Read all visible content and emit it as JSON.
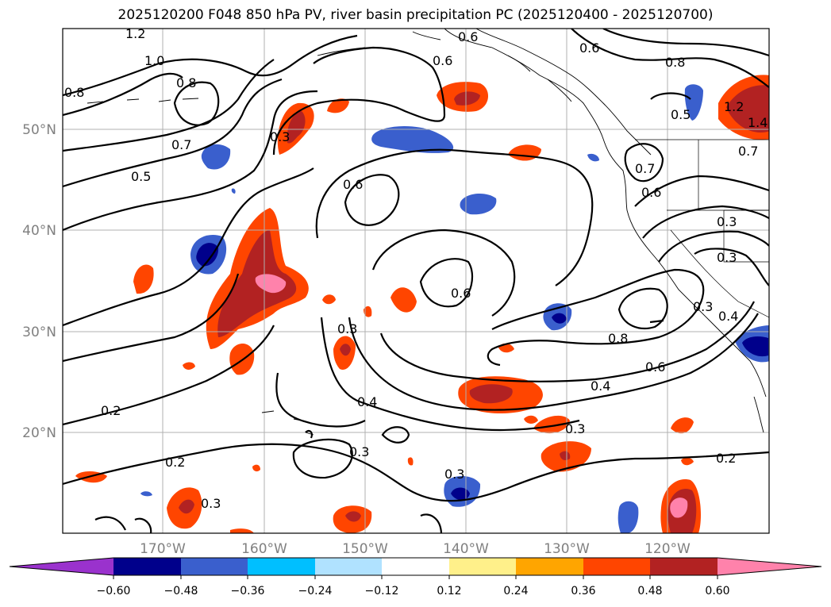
{
  "title": "2025120200 F048 850 hPa PV, river basin precipitation PC (2025120400 - 2025120700)",
  "lat_labels": [
    "50°N",
    "40°N",
    "30°N",
    "20°N"
  ],
  "lon_labels": [
    "170°W",
    "160°W",
    "150°W",
    "140°W",
    "130°W",
    "120°W"
  ],
  "contour_labels": [
    "1.2",
    "1.0",
    "0.8",
    "0.8",
    "0.7",
    "0.5",
    "0.3",
    "0.6",
    "0.6",
    "0.6",
    "0.6",
    "0.8",
    "0.5",
    "1.2",
    "1.4",
    "0.7",
    "0.7",
    "0.6",
    "0.3",
    "0.3",
    "0.6",
    "0.8",
    "0.6",
    "0.4",
    "0.3",
    "0.4",
    "0.2",
    "0.2",
    "0.3",
    "0.3",
    "0.3",
    "0.2",
    "0.3",
    "0.3",
    "0.4"
  ],
  "colorbar": {
    "ticks": [
      "−0.60",
      "−0.48",
      "−0.36",
      "−0.24",
      "−0.12",
      "0.12",
      "0.24",
      "0.36",
      "0.48",
      "0.60"
    ],
    "colors": {
      "under": "#9a32cd",
      "neg_060_048": "#00008b",
      "neg_048_036": "#3a5fcd",
      "neg_036_024": "#00bfff",
      "neg_024_012": "#b0e2ff",
      "neutral": "#ffffff",
      "pos_012_024": "#fff08a",
      "pos_024_036": "#ffa500",
      "pos_036_048": "#ff4500",
      "pos_048_060": "#b22222",
      "over": "#ff82ab"
    }
  }
}
